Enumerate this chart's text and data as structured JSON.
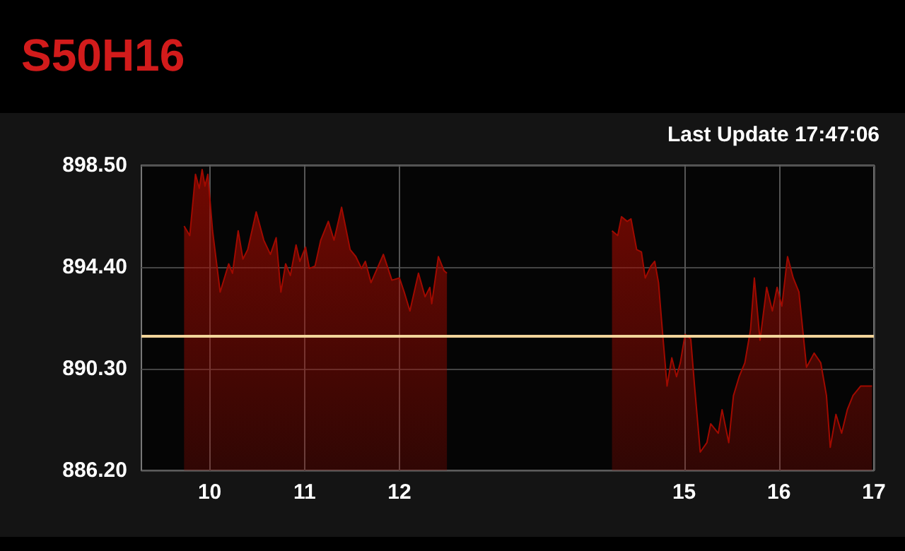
{
  "chart_data": {
    "type": "area",
    "title": "S50H16",
    "annotations": [
      "Last Update 17:47:06"
    ],
    "x": [
      9.73,
      9.79,
      9.85,
      9.89,
      9.92,
      9.95,
      9.98,
      10.03,
      10.11,
      10.2,
      10.24,
      10.3,
      10.35,
      10.4,
      10.49,
      10.57,
      10.64,
      10.7,
      10.75,
      10.8,
      10.85,
      10.91,
      10.95,
      11.01,
      11.05,
      11.11,
      11.17,
      11.25,
      11.31,
      11.39,
      11.48,
      11.54,
      11.6,
      11.64,
      11.7,
      11.83,
      11.92,
      12.0,
      12.05,
      12.11,
      12.2,
      12.27,
      12.32,
      12.34,
      12.41,
      12.47,
      12.5,
      13.4,
      14.24,
      14.3,
      14.34,
      14.4,
      14.44,
      14.5,
      14.55,
      14.59,
      14.65,
      14.69,
      14.73,
      14.77,
      14.82,
      14.87,
      14.92,
      14.96,
      15.01,
      15.07,
      15.11,
      15.17,
      15.24,
      15.28,
      15.36,
      15.4,
      15.47,
      15.52,
      15.58,
      15.64,
      15.7,
      15.74,
      15.8,
      15.87,
      15.93,
      15.98,
      16.03,
      16.09,
      16.15,
      16.21,
      16.29,
      16.37,
      16.44,
      16.5,
      16.54,
      16.6,
      16.66,
      16.72,
      16.78,
      16.86,
      16.98
    ],
    "series": [
      {
        "color": "#a00a00",
        "values": [
          896.05,
          895.67,
          898.14,
          897.57,
          898.33,
          897.66,
          898.14,
          895.86,
          893.39,
          894.53,
          894.15,
          895.86,
          894.72,
          895.1,
          896.62,
          895.48,
          894.91,
          895.58,
          893.39,
          894.53,
          894.06,
          895.29,
          894.63,
          895.2,
          894.34,
          894.44,
          895.48,
          896.24,
          895.48,
          896.81,
          895.1,
          894.82,
          894.34,
          894.63,
          893.77,
          894.91,
          893.87,
          893.96,
          893.39,
          892.63,
          894.15,
          893.2,
          893.58,
          892.92,
          894.82,
          894.25,
          894.15,
          null,
          895.86,
          895.67,
          896.43,
          896.24,
          896.34,
          895.1,
          895.01,
          893.96,
          894.44,
          894.63,
          893.77,
          891.88,
          889.6,
          890.74,
          889.98,
          890.54,
          891.68,
          891.5,
          889.6,
          886.94,
          887.32,
          888.08,
          887.7,
          888.65,
          887.32,
          889.22,
          889.98,
          890.54,
          891.88,
          893.96,
          891.45,
          893.58,
          892.63,
          893.58,
          892.82,
          894.82,
          893.96,
          893.39,
          890.36,
          890.93,
          890.54,
          889.22,
          887.13,
          888.46,
          887.7,
          888.65,
          889.22,
          889.6,
          889.6
        ]
      }
    ],
    "xlim": [
      9.28,
      17
    ],
    "xticks": [
      10,
      11,
      12,
      15,
      16,
      17
    ],
    "ylim": [
      886.2,
      898.5
    ],
    "yticks": [
      {
        "value": 886.2,
        "label": "886.20"
      },
      {
        "value": 890.3,
        "label": "890.30"
      },
      {
        "value": 894.4,
        "label": "894.40"
      },
      {
        "value": 898.5,
        "label": "898.50"
      }
    ],
    "ref_lines": [
      {
        "axis": "y",
        "value": 891.6,
        "color": "#f2d49a"
      }
    ],
    "grid": true,
    "marker": "none"
  }
}
